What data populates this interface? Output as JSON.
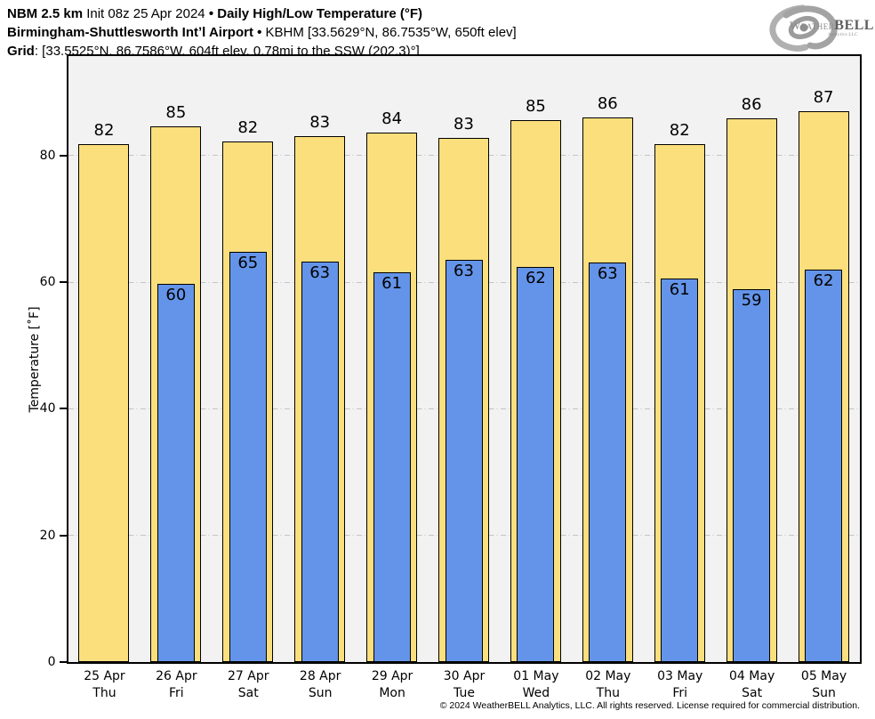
{
  "header": {
    "line1": {
      "model": "NBM 2.5 km",
      "init": "Init 08z 25 Apr 2024",
      "sep": "•",
      "product": "Daily High/Low Temperature (°F)"
    },
    "line2": {
      "station": "Birmingham-Shuttlesworth Intʼl Airport",
      "sep": "•",
      "details": "KBHM [33.5629°N, 86.7535°W, 650ft elev]"
    },
    "line3": {
      "label": "Grid",
      "details": ": [33.5525°N, 86.7586°W, 604ft elev, 0.78mi to the SSW (202.3)°]"
    }
  },
  "logo": {
    "name": "WeatherBELL swirl logo",
    "part1": "Weather",
    "part2": "BELL",
    "subtext": "Analytics LLC"
  },
  "chart_data": {
    "type": "bar",
    "title": "Daily High/Low Temperature (°F)",
    "xlabel": "",
    "ylabel": "Temperature [˚F]",
    "ylim": [
      0,
      95.7
    ],
    "yticks": [
      0,
      20,
      40,
      60,
      80
    ],
    "grid": "horizontal dash-dot gridlines at yticks",
    "legend_position": "none",
    "plot_background": "#f2f2f2",
    "categories": [
      {
        "date": "25 Apr",
        "day": "Thu"
      },
      {
        "date": "26 Apr",
        "day": "Fri"
      },
      {
        "date": "27 Apr",
        "day": "Sat"
      },
      {
        "date": "28 Apr",
        "day": "Sun"
      },
      {
        "date": "29 Apr",
        "day": "Mon"
      },
      {
        "date": "30 Apr",
        "day": "Tue"
      },
      {
        "date": "01 May",
        "day": "Wed"
      },
      {
        "date": "02 May",
        "day": "Thu"
      },
      {
        "date": "03 May",
        "day": "Fri"
      },
      {
        "date": "04 May",
        "day": "Sat"
      },
      {
        "date": "05 May",
        "day": "Sun"
      }
    ],
    "series": [
      {
        "name": "Daily High",
        "color": "#FCDF7D",
        "labels": [
          82,
          85,
          82,
          83,
          84,
          83,
          85,
          86,
          82,
          86,
          87
        ],
        "values": [
          81.7,
          84.6,
          82.2,
          83.0,
          83.6,
          82.7,
          85.5,
          85.9,
          81.7,
          85.8,
          86.9
        ]
      },
      {
        "name": "Daily Low",
        "color": "#6494E9",
        "labels": [
          null,
          60,
          65,
          63,
          61,
          63,
          62,
          63,
          61,
          59,
          62
        ],
        "values": [
          null,
          59.6,
          64.7,
          63.1,
          61.5,
          63.4,
          62.3,
          63.0,
          60.5,
          58.8,
          61.9
        ]
      }
    ]
  },
  "footer": {
    "copyright": "© 2024 WeatherBELL Analytics, LLC. All rights reserved. License required for commercial distribution."
  }
}
